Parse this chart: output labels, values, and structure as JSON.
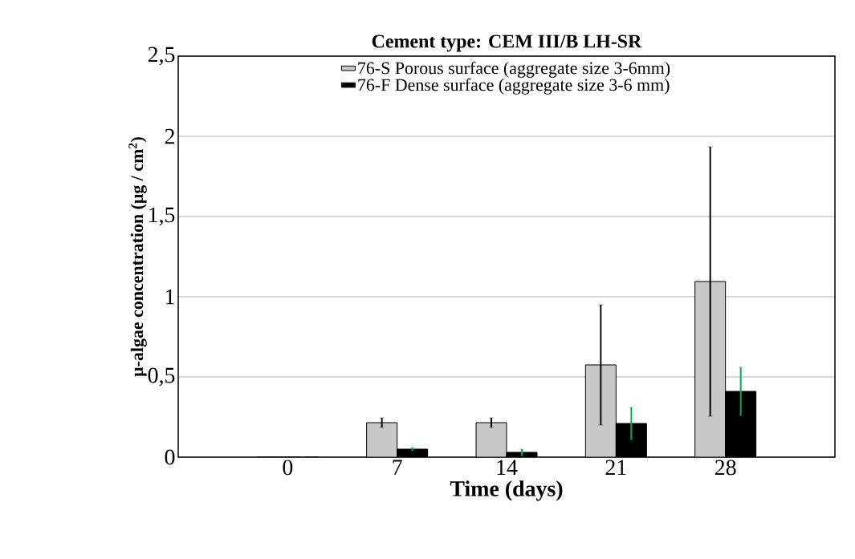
{
  "chart_data": {
    "type": "bar",
    "title": "Cement type: CEM III/B  LH-SR",
    "xlabel": "Time (days)",
    "ylabel": "μ-algae concentration (μg / cm$^{2}$)",
    "categories": [
      "0",
      "7",
      "14",
      "21",
      "28"
    ],
    "series": [
      {
        "name": "76-S Porous surface (aggregate size 3-6mm)",
        "color": "#c8c8c8",
        "values": [
          0,
          0.215,
          0.215,
          0.575,
          1.095
        ],
        "errors": [
          null,
          0.03,
          0.03,
          0.375,
          0.84
        ]
      },
      {
        "name": "76-F Dense surface (aggregate size 3-6 mm)",
        "color": "#000000",
        "values": [
          0,
          0.05,
          0.03,
          0.21,
          0.41
        ],
        "errors": [
          null,
          0.01,
          0.02,
          0.1,
          0.15
        ]
      }
    ],
    "ylim": [
      0,
      2.5
    ],
    "yticks": [
      0,
      {
        "value": 0.5,
        "label": "0,5"
      },
      1,
      {
        "value": 1.5,
        "label": "1,5"
      },
      2,
      {
        "value": 2.5,
        "label": "2,5"
      }
    ],
    "grid": "y",
    "legend": "top"
  }
}
